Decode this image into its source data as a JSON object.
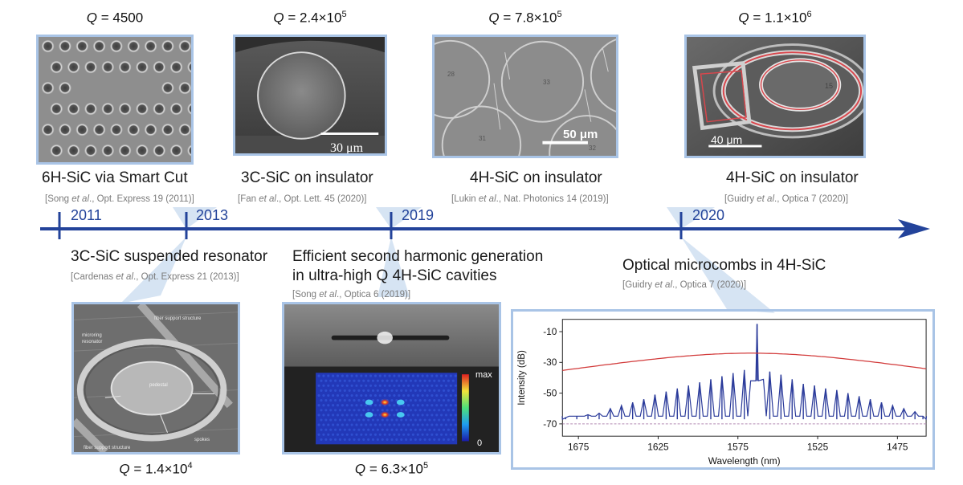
{
  "timeline": {
    "color": "#23439a",
    "years": [
      "2011",
      "2013",
      "2019",
      "2020"
    ]
  },
  "top_items": [
    {
      "q_prefix": "Q",
      "q_text": " = 4500",
      "q_exp": "",
      "title": "6H-SiC via Smart Cut",
      "cite_author": "Song",
      "cite_rest": "., Opt. Express 19 (2011)]",
      "scale": ""
    },
    {
      "q_prefix": "Q",
      "q_text": " = 2.4×10",
      "q_exp": "5",
      "title": "3C-SiC on insulator",
      "cite_author": "Fan",
      "cite_rest": "., Opt. Lett. 45 (2020)]",
      "scale": "30 μm"
    },
    {
      "q_prefix": "Q",
      "q_text": " = 7.8×10",
      "q_exp": "5",
      "title": "4H-SiC on insulator",
      "cite_author": "Lukin",
      "cite_rest": "., Nat. Photonics 14 (2019)]",
      "scale": "50 μm"
    },
    {
      "q_prefix": "Q",
      "q_text": " = 1.1×10",
      "q_exp": "6",
      "title": "4H-SiC on insulator",
      "cite_author": "Guidry",
      "cite_rest": "., Optica 7 (2020)]",
      "scale": "40 μm"
    }
  ],
  "bottom_items": [
    {
      "title": "3C-SiC suspended resonator",
      "title2": "",
      "cite_author": "Cardenas",
      "cite_rest": "., Opt. Express 21 (2013)]",
      "q_prefix": "Q",
      "q_text": " = 1.4×10",
      "q_exp": "4"
    },
    {
      "title": "Efficient second harmonic generation",
      "title2": "in ultra-high Q 4H-SiC cavities",
      "cite_author": "Song",
      "cite_rest": "., Optica 6 (2019)]",
      "q_prefix": "Q",
      "q_text": " = 6.3×10",
      "q_exp": "5"
    },
    {
      "title": "Optical microcombs in 4H-SiC",
      "title2": "",
      "cite_author": "Guidry",
      "cite_rest": "., Optica 7 (2020)]",
      "q_prefix": "",
      "q_text": "",
      "q_exp": ""
    }
  ],
  "cite_common": {
    "open": "[",
    "etal": " et al"
  },
  "sem_labels": {
    "fiber_top": "fiber support structure",
    "microring": "microring",
    "resonator": "resonator",
    "pedestal": "pedestal",
    "spokes": "spokes",
    "fiber_bottom": "fiber support structure",
    "ring_numbers": [
      "28",
      "33",
      "31",
      "32"
    ],
    "ring_id": "15"
  },
  "colorbar": {
    "max": "max",
    "min": "0"
  },
  "chart_data": {
    "type": "line",
    "xlabel": "Wavelength (nm)",
    "ylabel": "Intensity (dB)",
    "xlim": [
      1685,
      1457
    ],
    "ylim": [
      -78,
      -2
    ],
    "xticks": [
      1675,
      1625,
      1575,
      1525,
      1475
    ],
    "yticks": [
      -10,
      -30,
      -50,
      -70
    ],
    "grid": false,
    "series": [
      {
        "color": "#2a3a9a",
        "pump_wavelength": 1563,
        "pump_peak_db": -5,
        "noise_floor_db": -67,
        "comb_lines": [
          [
            1683,
            -66
          ],
          [
            1676,
            -65
          ],
          [
            1669,
            -64
          ],
          [
            1662,
            -63
          ],
          [
            1655,
            -60
          ],
          [
            1648,
            -58
          ],
          [
            1641,
            -56
          ],
          [
            1634,
            -54
          ],
          [
            1627,
            -51
          ],
          [
            1620,
            -49
          ],
          [
            1613,
            -47
          ],
          [
            1606,
            -45
          ],
          [
            1599,
            -43
          ],
          [
            1592,
            -41
          ],
          [
            1585,
            -39
          ],
          [
            1578,
            -37
          ],
          [
            1571,
            -35
          ],
          [
            1555,
            -36
          ],
          [
            1548,
            -38
          ],
          [
            1541,
            -41
          ],
          [
            1534,
            -44
          ],
          [
            1527,
            -45
          ],
          [
            1520,
            -47
          ],
          [
            1513,
            -48
          ],
          [
            1506,
            -50
          ],
          [
            1499,
            -52
          ],
          [
            1492,
            -54
          ],
          [
            1485,
            -56
          ],
          [
            1478,
            -58
          ],
          [
            1471,
            -60
          ],
          [
            1464,
            -62
          ],
          [
            1459,
            -65
          ]
        ]
      },
      {
        "color": "#d23a3a",
        "sech2_peak_db": -24,
        "center": 1567
      }
    ],
    "reference_line_db": -70
  }
}
